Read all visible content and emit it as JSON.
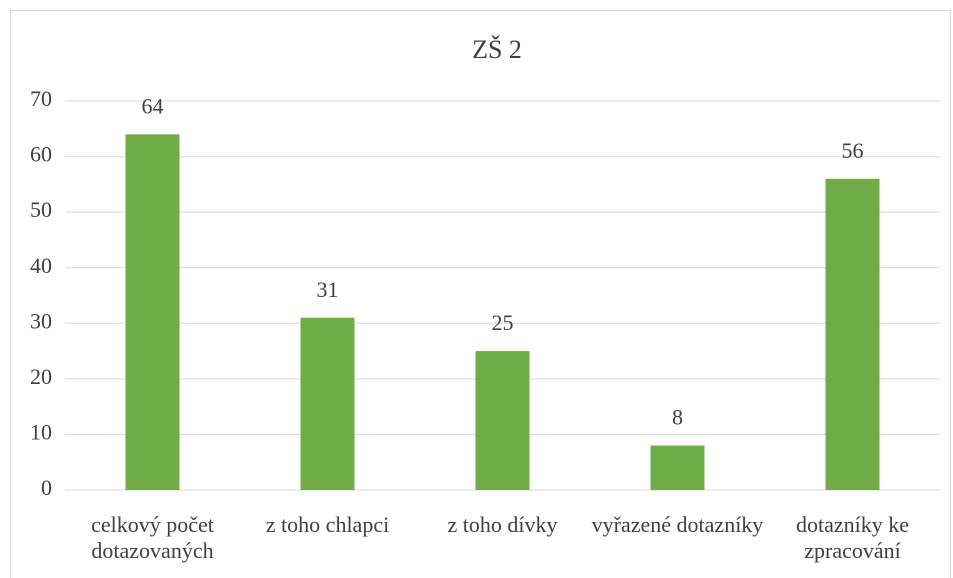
{
  "chart_data": {
    "type": "bar",
    "title": "ZŠ 2",
    "categories": [
      "celkový počet dotazovaných",
      "z toho chlapci",
      "z toho dívky",
      "vyřazené dotazníky",
      "dotazníky ke zpracování"
    ],
    "values": [
      64,
      31,
      25,
      8,
      56
    ],
    "color": "#70ad47",
    "ylim": [
      0,
      70
    ],
    "yticks": [
      0,
      10,
      20,
      30,
      40,
      50,
      60,
      70
    ],
    "grid": true
  }
}
